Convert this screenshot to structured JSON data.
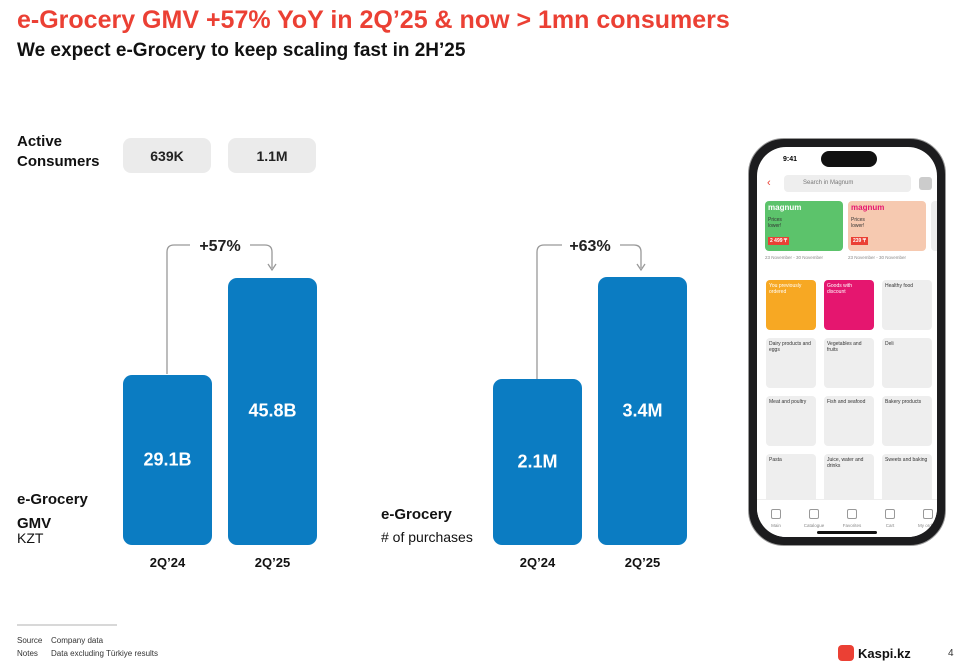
{
  "header": {
    "title": "e-Grocery GMV +57% YoY in 2Q’25 & now > 1mn consumers",
    "subtitle": "We expect e-Grocery to keep scaling fast in 2H’25"
  },
  "consumers": {
    "label": "Active Consumers",
    "values": [
      "639K",
      "1.1M"
    ]
  },
  "chart_data": [
    {
      "type": "bar",
      "title": "e-Grocery GMV",
      "subtitle": "KZT",
      "categories": [
        "2Q’24",
        "2Q’25"
      ],
      "values": [
        29.1,
        45.8
      ],
      "value_labels": [
        "29.1B",
        "45.8B"
      ],
      "annotation": "+57%",
      "color": "#0b7cc2",
      "ylim": [
        0,
        50
      ]
    },
    {
      "type": "bar",
      "title": "e-Grocery",
      "subtitle": "# of purchases",
      "categories": [
        "2Q’24",
        "2Q’25"
      ],
      "values": [
        2.1,
        3.4
      ],
      "value_labels": [
        "2.1M",
        "3.4M"
      ],
      "annotation": "+63%",
      "color": "#0b7cc2",
      "ylim": [
        0,
        3.7
      ]
    }
  ],
  "phone": {
    "time": "9:41",
    "search": "Search in Magnum",
    "promos": [
      {
        "brand": "magnum",
        "text": "Prices lower!",
        "price": "2 499 ₸",
        "dates": "23 November - 30 November"
      },
      {
        "brand": "magnum",
        "text": "Prices lower!",
        "price": "239 ₸",
        "dates": "23 November - 30 November"
      }
    ],
    "tiles": [
      "You previously ordered",
      "Goods with discount",
      "Healthy food",
      "Dairy products and eggs",
      "Vegetables and fruits",
      "Deli",
      "Meat and poultry",
      "Fish and seafood",
      "Bakery products",
      "Pasta",
      "Juice, water and drinks",
      "Sweets and baking"
    ],
    "nav": [
      "Main",
      "Catalogue",
      "Favorites",
      "Cart",
      "My orders"
    ]
  },
  "footer": {
    "source_label": "Source",
    "source": "Company data",
    "notes_label": "Notes",
    "notes": "Data excluding Türkiye results",
    "brand": "Kaspi.kz",
    "page": "4"
  }
}
